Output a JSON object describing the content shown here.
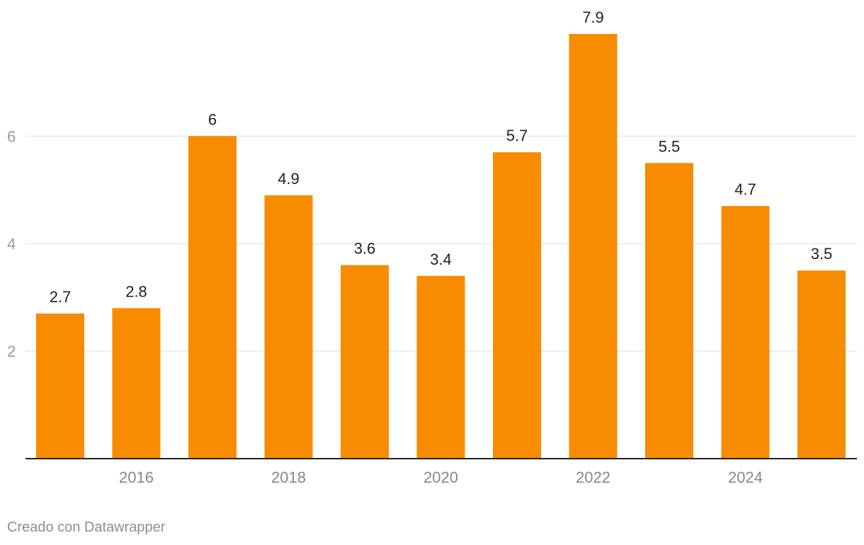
{
  "chart_data": {
    "type": "bar",
    "x": [
      2015,
      2016,
      2017,
      2018,
      2019,
      2020,
      2021,
      2022,
      2023,
      2024,
      2025
    ],
    "values": [
      2.7,
      2.8,
      6,
      4.9,
      3.6,
      3.4,
      5.7,
      7.9,
      5.5,
      4.7,
      3.5
    ],
    "x_tick_labels": [
      "2016",
      "2018",
      "2020",
      "2022",
      "2024"
    ],
    "y_ticks": [
      2,
      4,
      6
    ],
    "ylim": [
      0,
      7.9
    ],
    "grid": true,
    "legend": "none",
    "title": "",
    "xlabel": "",
    "ylabel": "",
    "bar_color": "#f78c00"
  },
  "footer": {
    "credit": "Creado con Datawrapper"
  }
}
